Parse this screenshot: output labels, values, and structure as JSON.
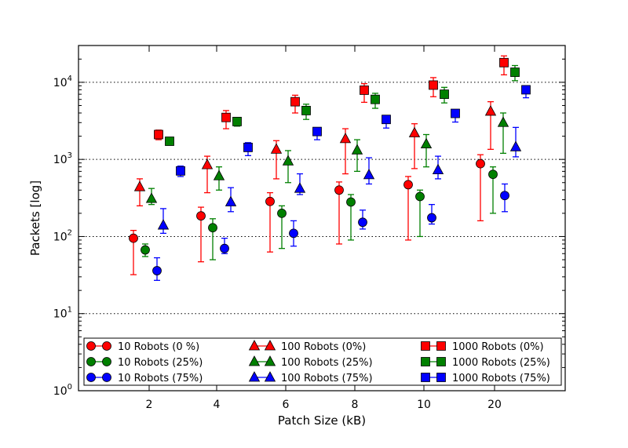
{
  "chart_data": {
    "type": "scatter",
    "title": "",
    "xlabel": "Patch Size (kB)",
    "ylabel": "Packets [log]",
    "yscale": "log",
    "ylim": [
      1,
      30000
    ],
    "grid": "horizontal dotted",
    "legend_position": "bottom",
    "categories": [
      "2",
      "4",
      "6",
      "8",
      "10",
      "20"
    ],
    "yticks": [
      {
        "base": "10",
        "exp": "0"
      },
      {
        "base": "10",
        "exp": "1"
      },
      {
        "base": "10",
        "exp": "2"
      },
      {
        "base": "10",
        "exp": "3"
      },
      {
        "base": "10",
        "exp": "4"
      }
    ],
    "series": [
      {
        "name": "10 Robots (0 %)",
        "marker": "circle",
        "color": "#ff0000",
        "values": [
          95,
          185,
          285,
          400,
          470,
          880
        ],
        "err_low": [
          32,
          47,
          63,
          80,
          90,
          160
        ],
        "err_high": [
          120,
          240,
          370,
          510,
          600,
          1150
        ]
      },
      {
        "name": "10 Robots (25%)",
        "marker": "circle",
        "color": "#008000",
        "values": [
          67,
          130,
          200,
          280,
          330,
          640
        ],
        "err_low": [
          55,
          50,
          70,
          90,
          100,
          200
        ],
        "err_high": [
          80,
          170,
          250,
          350,
          400,
          800
        ]
      },
      {
        "name": "10 Robots (75%)",
        "marker": "circle",
        "color": "#0000ff",
        "values": [
          36,
          70,
          110,
          153,
          175,
          340
        ],
        "err_low": [
          27,
          60,
          75,
          125,
          145,
          210
        ],
        "err_high": [
          53,
          95,
          160,
          220,
          260,
          480
        ]
      },
      {
        "name": "100 Robots (0%)",
        "marker": "triangle",
        "color": "#ff0000",
        "values": [
          440,
          850,
          1350,
          1850,
          2200,
          4200
        ],
        "err_low": [
          250,
          370,
          560,
          650,
          760,
          1350
        ],
        "err_high": [
          560,
          1100,
          1750,
          2500,
          2900,
          5600
        ]
      },
      {
        "name": "100 Robots (25%)",
        "marker": "triangle",
        "color": "#008000",
        "values": [
          310,
          610,
          950,
          1320,
          1580,
          3000
        ],
        "err_low": [
          260,
          400,
          500,
          700,
          800,
          1200
        ],
        "err_high": [
          420,
          800,
          1300,
          1800,
          2100,
          4000
        ]
      },
      {
        "name": "100 Robots (75%)",
        "marker": "triangle",
        "color": "#0000ff",
        "values": [
          140,
          280,
          420,
          630,
          730,
          1450
        ],
        "err_low": [
          110,
          210,
          350,
          480,
          560,
          1080
        ],
        "err_high": [
          230,
          430,
          650,
          1050,
          1100,
          2600
        ]
      },
      {
        "name": "1000 Robots (0%)",
        "marker": "square",
        "color": "#ff0000",
        "values": [
          2100,
          3500,
          5600,
          7900,
          9200,
          18000
        ],
        "err_low": [
          1800,
          2500,
          4000,
          5500,
          6500,
          12500
        ],
        "err_high": [
          2400,
          4300,
          6800,
          9600,
          11500,
          22000
        ]
      },
      {
        "name": "1000 Robots (25%)",
        "marker": "square",
        "color": "#008000",
        "values": [
          1720,
          3100,
          4300,
          6000,
          7000,
          13500
        ],
        "err_low": [
          1600,
          2700,
          3300,
          4600,
          5400,
          10500
        ],
        "err_high": [
          1850,
          3500,
          5200,
          7200,
          8600,
          16500
        ]
      },
      {
        "name": "1000 Robots (75%)",
        "marker": "square",
        "color": "#0000ff",
        "values": [
          710,
          1430,
          2300,
          3300,
          3950,
          8000
        ],
        "err_low": [
          600,
          1120,
          1800,
          2550,
          3050,
          6300
        ],
        "err_high": [
          820,
          1650,
          2550,
          3650,
          4350,
          9000
        ]
      }
    ]
  }
}
